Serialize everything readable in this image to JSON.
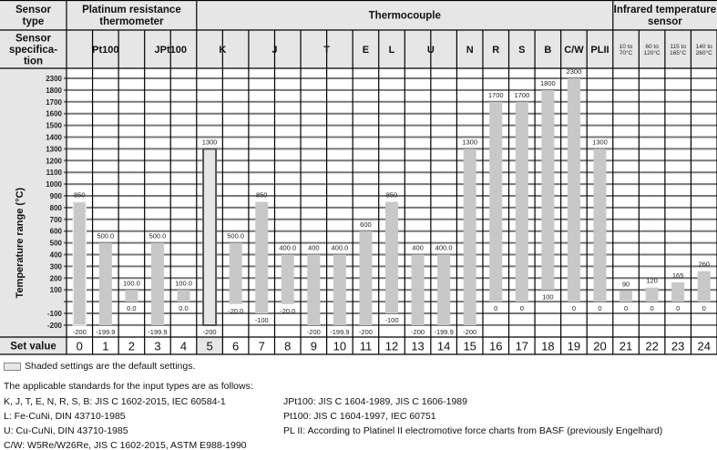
{
  "header": {
    "sensor_type_label": "Sensor type",
    "sensor_spec_label": "Sensor specifica-tion",
    "groups": [
      {
        "label": "Platinum resistance thermometer",
        "cols": [
          0,
          4
        ]
      },
      {
        "label": "Thermocouple",
        "cols": [
          5,
          20
        ]
      },
      {
        "label": "Infrared temperature sensor",
        "cols": [
          21,
          24
        ]
      }
    ],
    "specs": [
      {
        "label": "Pt100",
        "cols": [
          0,
          2
        ]
      },
      {
        "label": "JPt100",
        "cols": [
          3,
          4
        ]
      },
      {
        "label": "K",
        "cols": [
          5,
          6
        ]
      },
      {
        "label": "J",
        "cols": [
          7,
          8
        ]
      },
      {
        "label": "T",
        "cols": [
          9,
          10
        ]
      },
      {
        "label": "E",
        "cols": [
          11,
          11
        ]
      },
      {
        "label": "L",
        "cols": [
          12,
          12
        ]
      },
      {
        "label": "U",
        "cols": [
          13,
          14
        ]
      },
      {
        "label": "N",
        "cols": [
          15,
          15
        ]
      },
      {
        "label": "R",
        "cols": [
          16,
          16
        ]
      },
      {
        "label": "S",
        "cols": [
          17,
          17
        ]
      },
      {
        "label": "B",
        "cols": [
          18,
          18
        ]
      },
      {
        "label": "C/W",
        "cols": [
          19,
          19
        ]
      },
      {
        "label": "PLII",
        "cols": [
          20,
          20
        ]
      },
      {
        "label": "10 to 70°C",
        "cols": [
          21,
          21
        ],
        "small": true
      },
      {
        "label": "60 to 120°C",
        "cols": [
          22,
          22
        ],
        "small": true
      },
      {
        "label": "115 to 165°C",
        "cols": [
          23,
          23
        ],
        "small": true
      },
      {
        "label": "140 to 260°C",
        "cols": [
          24,
          24
        ],
        "small": true
      }
    ]
  },
  "chart_data": {
    "type": "bar",
    "subtype": "floating-range",
    "ylabel": "Temperature range (°C)",
    "y_tick_labels": [
      "2300",
      "1800",
      "1700",
      "1600",
      "1500",
      "1400",
      "1300",
      "1200",
      "1100",
      "1000",
      "900",
      "800",
      "700",
      "600",
      "500",
      "400",
      "300",
      "200",
      "100",
      "",
      "-100",
      "-200"
    ],
    "y_scale": "non-uniform (1800 to 2300 compressed into one step)",
    "xlabel": "Set value",
    "categories": [
      "0",
      "1",
      "2",
      "3",
      "4",
      "5",
      "6",
      "7",
      "8",
      "9",
      "10",
      "11",
      "12",
      "13",
      "14",
      "15",
      "16",
      "17",
      "18",
      "19",
      "20",
      "21",
      "22",
      "23",
      "24"
    ],
    "series": [
      {
        "low": [
          -200,
          -199.9,
          0,
          -199.9,
          0,
          -200,
          -20,
          -100,
          -20,
          -200,
          -199.9,
          -200,
          -100,
          -200,
          -199.9,
          -200,
          0,
          0,
          100,
          0,
          0,
          0,
          0,
          0,
          0
        ],
        "high": [
          850,
          500,
          100,
          500,
          100,
          1300,
          500,
          850,
          400,
          400,
          400,
          600,
          850,
          400,
          400,
          1300,
          1700,
          1700,
          1800,
          2300,
          1300,
          90,
          120,
          165,
          260
        ],
        "low_labels": [
          "-200",
          "-199.9",
          "0.0",
          "-199.9",
          "0.0",
          "-200",
          "-20.0",
          "-100",
          "-20.0",
          "-200",
          "-199.9",
          "-200",
          "-100",
          "-200",
          "-199.9",
          "-200",
          "0",
          "0",
          "100",
          "0",
          "0",
          "0",
          "0",
          "0",
          "0"
        ],
        "high_labels": [
          "850",
          "500.0",
          "100.0",
          "500.0",
          "100.0",
          "1300",
          "500.0",
          "850",
          "400.0",
          "400",
          "400.0",
          "600",
          "850",
          "400",
          "400.0",
          "1300",
          "1700",
          "1700",
          "1800",
          "2300",
          "1300",
          "90",
          "120",
          "165",
          "260"
        ]
      }
    ],
    "default_index": 5,
    "grid": true,
    "colors": {
      "bar": "#c8c8c8",
      "default_bar": "#e6e6e6",
      "grid": "#777777",
      "header_bg": "#e6e6e6"
    }
  },
  "notes": {
    "legend": "Shaded settings are the default settings.",
    "intro": "The applicable standards for the input types are as follows:",
    "left": [
      "K, J, T, E, N, R, S, B: JIS C 1602-2015, IEC 60584-1",
      "L: Fe-CuNi, DIN 43710-1985",
      "U: Cu-CuNi, DIN 43710-1985",
      "C/W: W5Re/W26Re, JIS C 1602-2015, ASTM E988-1990"
    ],
    "right": [
      "JPt100: JIS C 1604-1989, JIS C 1606-1989",
      "Pt100: JIS C 1604-1997, IEC 60751",
      "PL II: According to Platinel II electromotive force charts from BASF (previously Engelhard)"
    ]
  }
}
